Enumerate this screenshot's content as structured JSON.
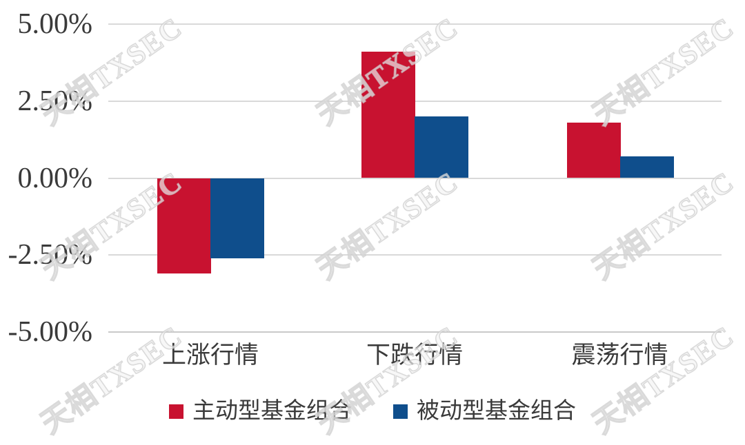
{
  "chart_data": {
    "type": "bar",
    "title": "",
    "xlabel": "",
    "ylabel": "",
    "categories": [
      "上涨行情",
      "下跌行情",
      "震荡行情"
    ],
    "series": [
      {
        "name": "主动型基金组合",
        "color": "#c81230",
        "values": [
          -3.1,
          4.1,
          1.8
        ]
      },
      {
        "name": "被动型基金组合",
        "color": "#0f4e8c",
        "values": [
          -2.6,
          2.0,
          0.7
        ]
      }
    ],
    "ylim": [
      -5,
      5
    ],
    "ytick_values": [
      5,
      2.5,
      0,
      -2.5,
      -5
    ],
    "ytick_labels": [
      "5.00%",
      "2.50%",
      "0.00%",
      "-2.50%",
      "-5.00%"
    ],
    "grid": true,
    "legend_position": "bottom"
  },
  "watermark": {
    "text": "天相TXSEC"
  },
  "colors": {
    "background": "#ffffff",
    "gridline": "#d9d9d9",
    "axis_line": "#c9c9c9",
    "text": "#3a3a3a",
    "series_active": "#c81230",
    "series_passive": "#0f4e8c"
  }
}
